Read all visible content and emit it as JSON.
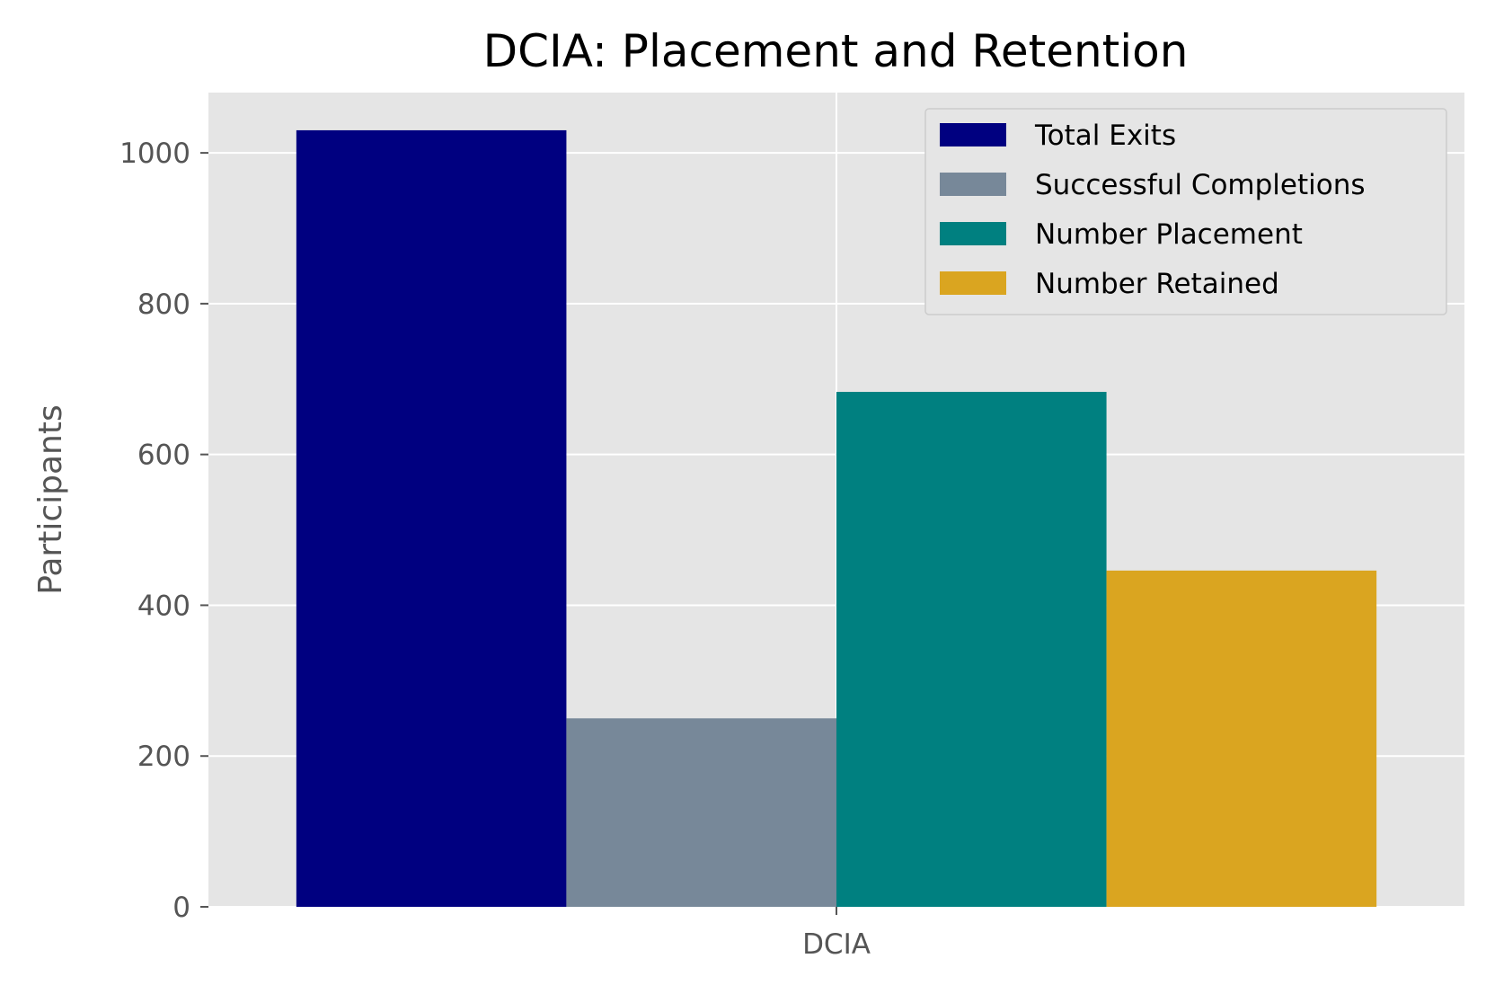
{
  "chart_data": {
    "type": "bar",
    "title": "DCIA: Placement and Retention",
    "xlabel": "",
    "ylabel": "Participants",
    "categories": [
      "DCIA"
    ],
    "series": [
      {
        "name": "Total Exits",
        "values": [
          1030
        ],
        "color": "#000080"
      },
      {
        "name": "Successful Completions",
        "values": [
          250
        ],
        "color": "#778899"
      },
      {
        "name": "Number Placement",
        "values": [
          683
        ],
        "color": "#008080"
      },
      {
        "name": "Number Retained",
        "values": [
          446
        ],
        "color": "#DAA520"
      }
    ],
    "ylim": [
      0,
      1080
    ],
    "yticks": [
      "0",
      "200",
      "400",
      "600",
      "800",
      "1000"
    ],
    "grid": true,
    "legend_position": "upper right",
    "colors": {
      "plot_background": "#E5E5E5",
      "grid": "#FFFFFF",
      "tick_text": "#555555"
    }
  }
}
